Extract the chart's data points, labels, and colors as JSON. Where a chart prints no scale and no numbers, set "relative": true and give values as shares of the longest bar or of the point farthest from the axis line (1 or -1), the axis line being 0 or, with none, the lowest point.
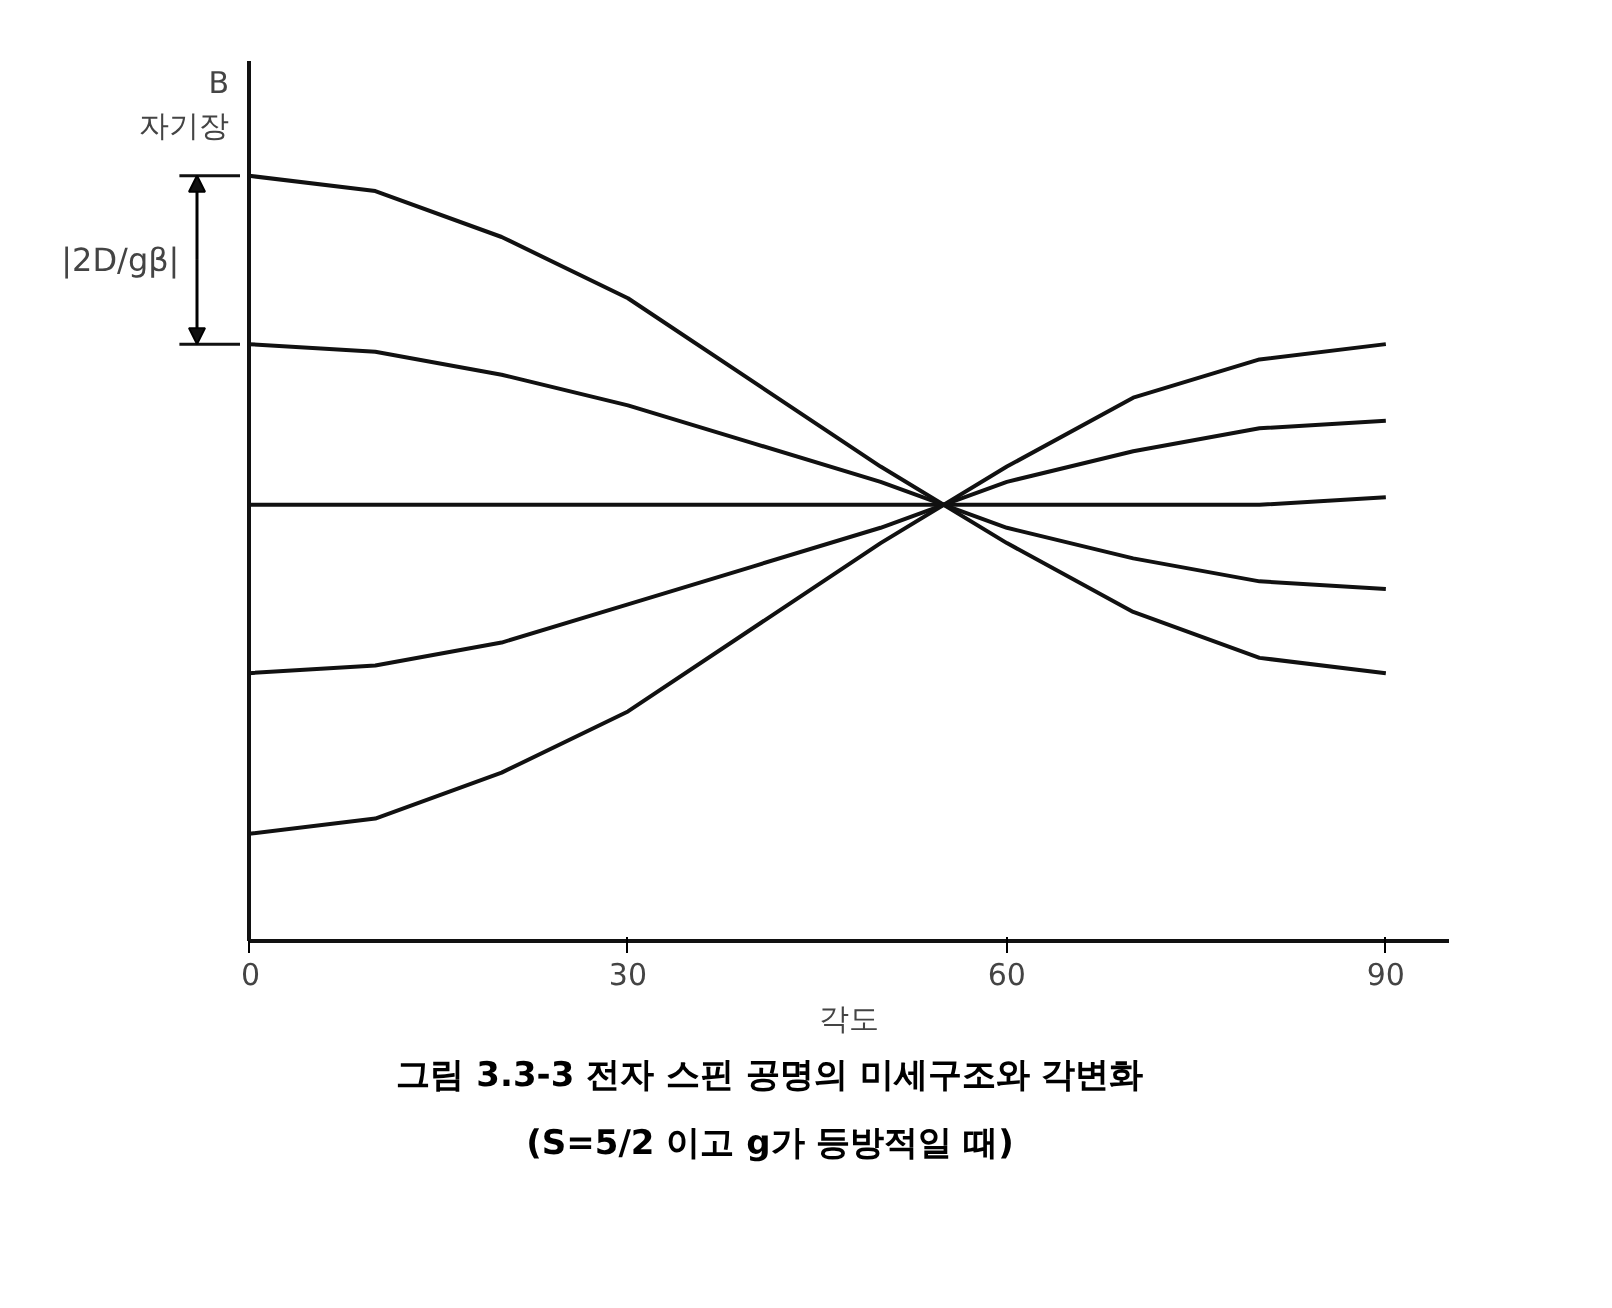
{
  "chart_data": {
    "type": "line",
    "title": "그림 3.3-3  전자 스핀 공명의 미세구조와 각변화",
    "subtitle": "(S=5/2 이고 g가 등방적일 때)",
    "xlabel": "각도",
    "ylabel": "B\n자기장",
    "relative": true,
    "x": [
      0,
      10,
      20,
      30,
      40,
      50,
      60,
      70,
      80,
      90
    ],
    "xlim": [
      0,
      95
    ],
    "xticks": [
      0,
      30,
      60,
      90
    ],
    "series": [
      {
        "color": "#111111",
        "values": [
          1.0,
          0.98,
          0.92,
          0.84,
          0.73,
          0.62,
          0.52,
          0.43,
          0.37,
          0.35
        ]
      },
      {
        "color": "#111111",
        "values": [
          0.78,
          0.77,
          0.74,
          0.7,
          0.65,
          0.6,
          0.54,
          0.5,
          0.47,
          0.46
        ]
      },
      {
        "color": "#111111",
        "values": [
          0.57,
          0.57,
          0.57,
          0.57,
          0.57,
          0.57,
          0.57,
          0.57,
          0.57,
          0.58
        ]
      },
      {
        "color": "#111111",
        "values": [
          0.35,
          0.36,
          0.39,
          0.44,
          0.49,
          0.54,
          0.6,
          0.64,
          0.67,
          0.68
        ]
      },
      {
        "color": "#111111",
        "values": [
          0.14,
          0.16,
          0.22,
          0.3,
          0.41,
          0.52,
          0.62,
          0.71,
          0.76,
          0.78
        ]
      }
    ],
    "annotations": [
      "|2D/gβ|"
    ]
  }
}
